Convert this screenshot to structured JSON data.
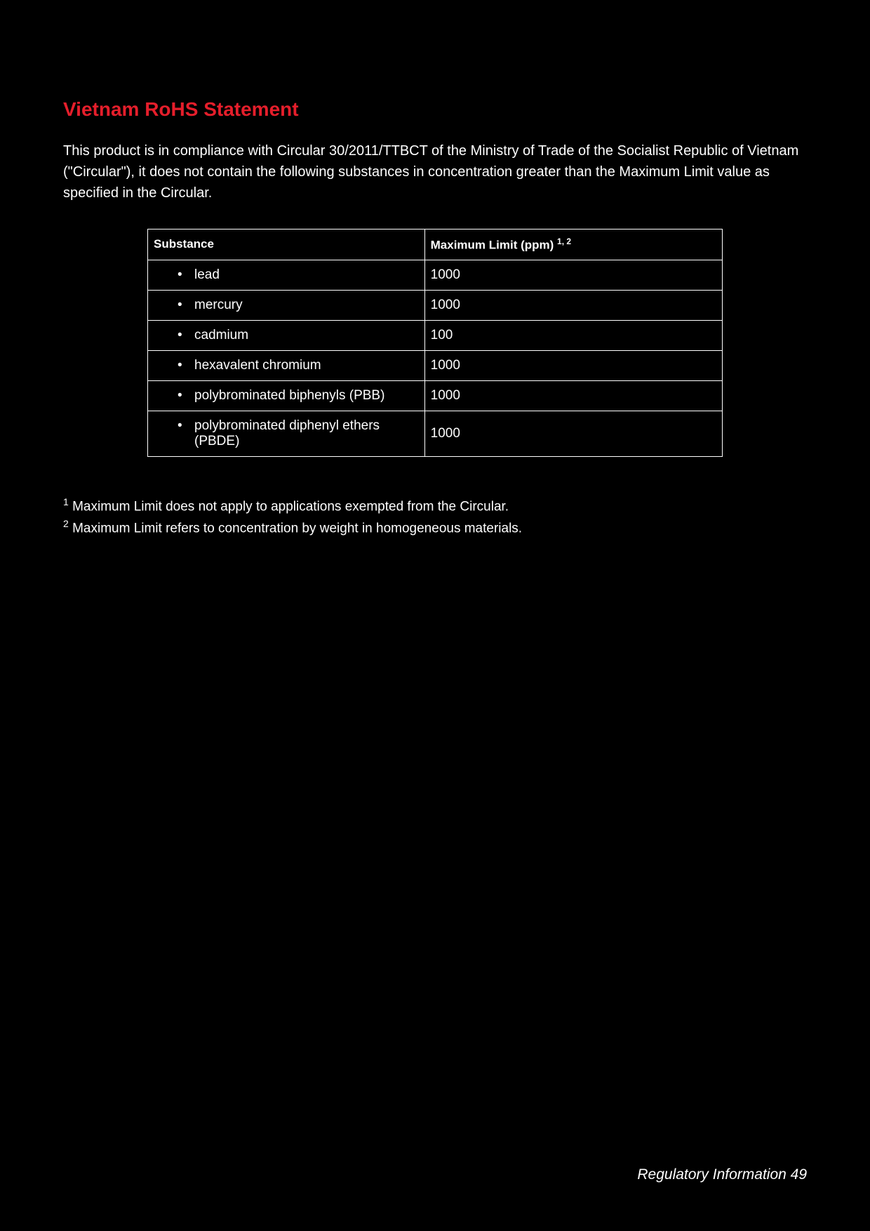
{
  "title": "Vietnam RoHS Statement",
  "intro": "This product is in compliance with Circular 30/2011/TTBCT of the Ministry of Trade of the Socialist Republic of Vietnam (\"Circular\"), it does not contain the following substances in concentration greater than the Maximum Limit value as specified in the Circular.",
  "table": {
    "header_substance": "Substance",
    "header_limit_prefix": "Maximum Limit (ppm) ",
    "header_limit_sup": "1, 2",
    "rows": [
      {
        "substance": "lead",
        "limit": "1000"
      },
      {
        "substance": "mercury",
        "limit": "1000"
      },
      {
        "substance": "cadmium",
        "limit": "100"
      },
      {
        "substance": "hexavalent chromium",
        "limit": "1000"
      },
      {
        "substance": "polybrominated biphenyls (PBB)",
        "limit": "1000"
      },
      {
        "substance": "polybrominated diphenyl ethers (PBDE)",
        "limit": "1000"
      }
    ]
  },
  "footnotes": {
    "n1_sup": "1",
    "n1_text": " Maximum Limit does not apply to applications exempted from the Circular.",
    "n2_sup": "2",
    "n2_text": " Maximum Limit refers to concentration by weight in homogeneous materials."
  },
  "footer": {
    "label": "Regulatory Information ",
    "page": "49"
  },
  "colors": {
    "background": "#000000",
    "text": "#ffffff",
    "title": "#e51e2b",
    "border": "#ffffff"
  }
}
